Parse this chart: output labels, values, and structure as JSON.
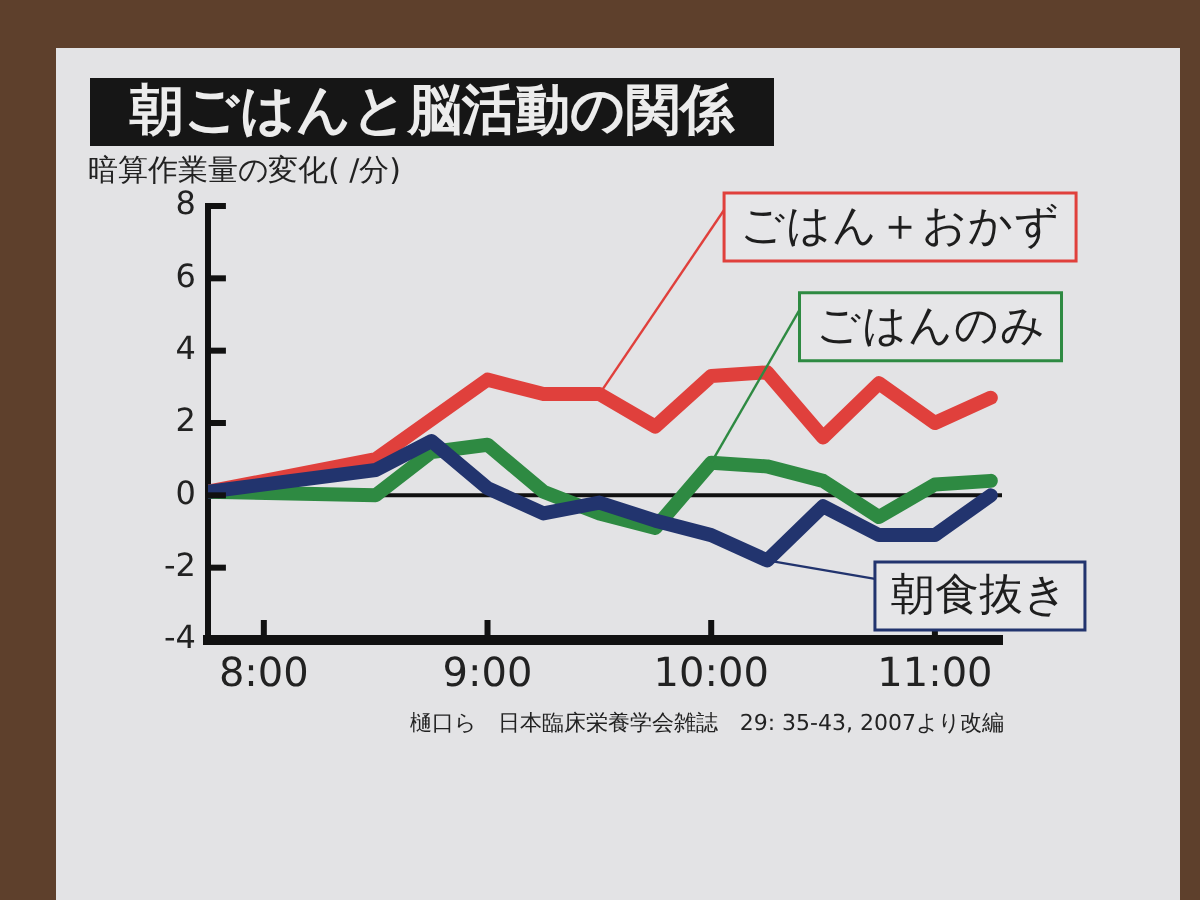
{
  "chart_data": {
    "type": "line",
    "title": "朝ごはんと脳活動の関係",
    "ylabel": "暗算作業量の変化( /分)",
    "annotations": [
      "樋口ら　日本臨床栄養学会雑誌　29: 35-43, 2007より改編"
    ],
    "x": [
      7.75,
      8.5,
      8.75,
      9,
      9.25,
      9.5,
      9.75,
      10,
      10.25,
      10.5,
      10.75,
      11,
      11.25
    ],
    "xlim": [
      7.75,
      11.3
    ],
    "xticks": [
      {
        "value": 8,
        "label": "8:00"
      },
      {
        "value": 9,
        "label": "9:00"
      },
      {
        "value": 10,
        "label": "10:00"
      },
      {
        "value": 11,
        "label": "11:00"
      }
    ],
    "ylim": [
      -4,
      8
    ],
    "yticks": [
      -4,
      -2,
      0,
      2,
      4,
      6,
      8
    ],
    "marker": "none",
    "line_style": "solid",
    "ref_lines": [
      {
        "axis": "y",
        "value": 0,
        "color": "#111111"
      }
    ],
    "series": [
      {
        "name": "ごはん＋おかず",
        "color": "#e0403c",
        "x": [
          7.75,
          8.5,
          9,
          9.25,
          9.5,
          9.75,
          10,
          10.25,
          10.5,
          10.75,
          11,
          11.25
        ],
        "values": [
          0.1,
          1.0,
          3.2,
          2.8,
          2.8,
          1.9,
          3.3,
          3.4,
          1.6,
          3.1,
          2.0,
          2.7
        ]
      },
      {
        "name": "ごはんのみ",
        "color": "#2e8a42",
        "values": [
          0.1,
          0.0,
          1.2,
          1.4,
          0.1,
          -0.5,
          -0.9,
          0.9,
          0.8,
          0.4,
          -0.6,
          0.3,
          0.4
        ]
      },
      {
        "name": "朝食抜き",
        "color": "#22346e",
        "values": [
          0.1,
          0.7,
          1.5,
          0.2,
          -0.5,
          -0.2,
          -0.7,
          -1.1,
          -1.8,
          -0.3,
          -1.1,
          -1.1,
          0.0
        ]
      }
    ]
  }
}
